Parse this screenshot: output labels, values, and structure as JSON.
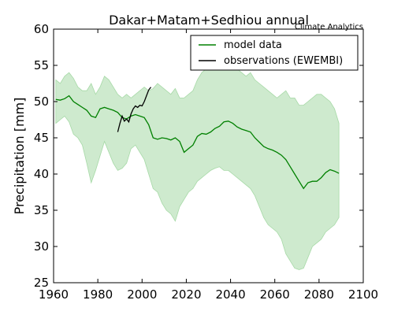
{
  "chart_data": {
    "type": "line",
    "title": "Dakar+Matam+Sedhiou annual",
    "watermark": "Climate Analytics",
    "xlabel": "",
    "ylabel": "Precipitation [mm]",
    "xlim": [
      1960,
      2100
    ],
    "ylim": [
      25,
      60
    ],
    "xticks": [
      1960,
      1980,
      2000,
      2020,
      2040,
      2060,
      2080,
      2100
    ],
    "yticks": [
      25,
      30,
      35,
      40,
      45,
      50,
      55,
      60
    ],
    "grid": false,
    "legend_position": "top-right",
    "colors": {
      "model": "#008000",
      "model_band": "#a6d9a6",
      "observations": "#000000"
    },
    "series": [
      {
        "name": "model data",
        "x": [
          1961,
          1963,
          1965,
          1967,
          1969,
          1971,
          1973,
          1975,
          1977,
          1979,
          1981,
          1983,
          1985,
          1987,
          1989,
          1991,
          1993,
          1995,
          1997,
          1999,
          2001,
          2003,
          2005,
          2007,
          2009,
          2011,
          2013,
          2015,
          2017,
          2019,
          2021,
          2023,
          2025,
          2027,
          2029,
          2031,
          2033,
          2035,
          2037,
          2039,
          2041,
          2043,
          2045,
          2047,
          2049,
          2051,
          2053,
          2055,
          2057,
          2059,
          2061,
          2063,
          2065,
          2067,
          2069,
          2071,
          2073,
          2075,
          2077,
          2079,
          2081,
          2083,
          2085,
          2087,
          2089
        ],
        "y": [
          50.3,
          50.2,
          50.4,
          50.8,
          50.0,
          49.6,
          49.2,
          48.8,
          48.0,
          47.8,
          49.0,
          49.2,
          49.0,
          48.8,
          48.5,
          47.8,
          47.6,
          48.0,
          48.2,
          48.0,
          47.8,
          46.8,
          45.0,
          44.8,
          45.0,
          44.9,
          44.7,
          45.0,
          44.5,
          43.0,
          43.5,
          44.0,
          45.2,
          45.6,
          45.5,
          45.8,
          46.3,
          46.6,
          47.2,
          47.3,
          47.0,
          46.5,
          46.2,
          46.0,
          45.8,
          45.0,
          44.4,
          43.8,
          43.5,
          43.3,
          43.0,
          42.6,
          42.0,
          41.0,
          40.0,
          39.0,
          38.0,
          38.8,
          39.0,
          39.0,
          39.5,
          40.2,
          40.6,
          40.4,
          40.1
        ],
        "range_low": [
          47.0,
          47.5,
          48.0,
          47.2,
          45.5,
          45.0,
          44.0,
          41.5,
          38.8,
          40.5,
          42.5,
          44.5,
          43.0,
          41.5,
          40.5,
          40.8,
          41.5,
          43.5,
          44.0,
          43.0,
          42.0,
          40.0,
          38.0,
          37.5,
          36.0,
          35.0,
          34.5,
          33.5,
          35.5,
          36.5,
          37.5,
          38.0,
          39.0,
          39.5,
          40.0,
          40.5,
          40.8,
          41.0,
          40.5,
          40.5,
          40.0,
          39.5,
          39.0,
          38.5,
          38.0,
          37.0,
          35.5,
          34.0,
          33.0,
          32.5,
          32.0,
          31.0,
          29.0,
          28.0,
          27.0,
          26.8,
          27.0,
          28.5,
          30.0,
          30.5,
          31.0,
          32.0,
          32.5,
          33.0,
          34.0
        ],
        "range_high": [
          53.0,
          52.5,
          53.5,
          54.0,
          53.2,
          52.0,
          51.5,
          51.5,
          52.5,
          51.0,
          52.0,
          53.5,
          53.0,
          52.0,
          51.0,
          50.5,
          51.0,
          50.5,
          51.0,
          51.5,
          52.0,
          51.5,
          51.8,
          52.5,
          52.0,
          51.5,
          51.0,
          51.8,
          50.5,
          50.5,
          51.0,
          51.5,
          53.0,
          54.0,
          54.5,
          54.5,
          55.0,
          55.8,
          56.0,
          55.5,
          54.5,
          54.5,
          54.0,
          53.5,
          54.0,
          53.0,
          52.5,
          52.0,
          51.5,
          51.0,
          50.5,
          51.0,
          51.5,
          50.5,
          50.5,
          49.5,
          49.5,
          50.0,
          50.5,
          51.0,
          51.0,
          50.5,
          50.0,
          49.0,
          47.0
        ]
      },
      {
        "name": "observations (EWEMBI)",
        "x": [
          1989,
          1990,
          1991,
          1992,
          1993,
          1994,
          1995,
          1996,
          1997,
          1998,
          1999,
          2000,
          2001,
          2002,
          2003,
          2004
        ],
        "y": [
          45.8,
          47.0,
          48.0,
          47.3,
          47.6,
          47.2,
          48.3,
          49.0,
          49.4,
          49.2,
          49.5,
          49.4,
          50.0,
          50.8,
          51.6,
          52.0
        ]
      }
    ]
  }
}
